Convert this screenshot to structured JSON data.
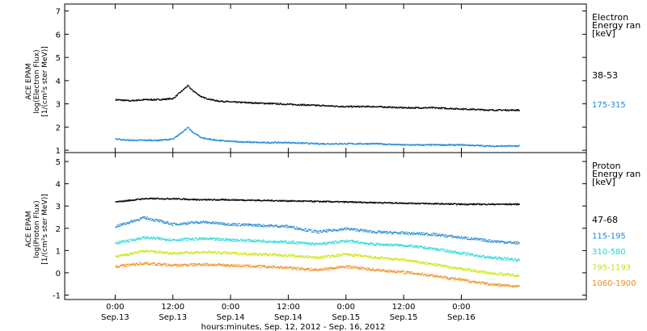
{
  "chart_data": [
    {
      "type": "scatter",
      "panel": "electron",
      "ylabel": [
        "ACE EPAM",
        "log(Electron Flux)",
        "[1/(cm²s ster MeV)]"
      ],
      "ylim": [
        0.9,
        7.3
      ],
      "yticks": [
        1,
        2,
        3,
        4,
        5,
        6,
        7
      ],
      "legend_title": [
        "Electron",
        "Energy ran",
        "[keV]"
      ],
      "series": [
        {
          "name": "38-53",
          "color": "#000000",
          "x": [
            0,
            3,
            6,
            9,
            12,
            15,
            16,
            18,
            21,
            24,
            30,
            36,
            42,
            48,
            54,
            60,
            66,
            72,
            78,
            84
          ],
          "values": [
            3.2,
            3.15,
            3.2,
            3.2,
            3.25,
            3.8,
            3.6,
            3.3,
            3.15,
            3.1,
            3.05,
            3.0,
            2.95,
            2.9,
            2.9,
            2.85,
            2.85,
            2.8,
            2.75,
            2.75
          ]
        },
        {
          "name": "175-315",
          "color": "#1e88d8",
          "x": [
            0,
            3,
            6,
            9,
            12,
            15,
            16,
            18,
            21,
            24,
            30,
            36,
            42,
            48,
            54,
            60,
            66,
            72,
            78,
            84
          ],
          "values": [
            1.5,
            1.45,
            1.45,
            1.45,
            1.5,
            2.0,
            1.8,
            1.55,
            1.45,
            1.4,
            1.35,
            1.35,
            1.3,
            1.3,
            1.3,
            1.25,
            1.25,
            1.25,
            1.2,
            1.2
          ]
        }
      ]
    },
    {
      "type": "scatter",
      "panel": "proton",
      "ylabel": [
        "ACE EPAM",
        "log(Proton Flux)",
        "[1/(cm²s ster MeV)]"
      ],
      "ylim": [
        -1.2,
        5.4
      ],
      "yticks": [
        -1,
        0,
        1,
        2,
        3,
        4,
        5
      ],
      "legend_title": [
        "Proton",
        "Energy ran",
        "[keV]"
      ],
      "series": [
        {
          "name": "47-68",
          "color": "#000000",
          "x": [
            0,
            6,
            12,
            18,
            24,
            36,
            48,
            60,
            72,
            84
          ],
          "values": [
            3.2,
            3.35,
            3.35,
            3.3,
            3.3,
            3.25,
            3.2,
            3.15,
            3.1,
            3.1
          ]
        },
        {
          "name": "115-195",
          "color": "#1e88d8",
          "x": [
            0,
            6,
            12,
            18,
            24,
            36,
            42,
            48,
            54,
            60,
            66,
            72,
            78,
            84
          ],
          "values": [
            2.1,
            2.5,
            2.2,
            2.3,
            2.2,
            2.1,
            1.85,
            2.0,
            1.85,
            1.8,
            1.75,
            1.6,
            1.45,
            1.35
          ]
        },
        {
          "name": "310-580",
          "color": "#22d6d6",
          "x": [
            0,
            6,
            12,
            18,
            24,
            36,
            42,
            48,
            54,
            60,
            66,
            72,
            78,
            84
          ],
          "values": [
            1.35,
            1.6,
            1.5,
            1.55,
            1.5,
            1.4,
            1.3,
            1.45,
            1.3,
            1.25,
            1.1,
            0.9,
            0.7,
            0.6
          ]
        },
        {
          "name": "795-1193",
          "color": "#c8e40a",
          "x": [
            0,
            6,
            12,
            18,
            24,
            36,
            42,
            48,
            54,
            60,
            66,
            72,
            78,
            84
          ],
          "values": [
            0.75,
            1.0,
            0.9,
            0.95,
            0.9,
            0.8,
            0.7,
            0.85,
            0.7,
            0.6,
            0.4,
            0.2,
            0.0,
            -0.1
          ]
        },
        {
          "name": "1060-1900",
          "color": "#f08a1c",
          "x": [
            0,
            6,
            12,
            18,
            24,
            36,
            42,
            48,
            54,
            60,
            66,
            72,
            78,
            84
          ],
          "values": [
            0.3,
            0.45,
            0.35,
            0.4,
            0.35,
            0.25,
            0.15,
            0.3,
            0.15,
            0.05,
            -0.1,
            -0.3,
            -0.5,
            -0.6
          ]
        }
      ]
    }
  ],
  "x_axis": {
    "xlim": [
      -10.5,
      98
    ],
    "ticks": [
      {
        "x": 0,
        "time": "0:00",
        "date": "Sep.13"
      },
      {
        "x": 12,
        "time": "12:00",
        "date": "Sep.13"
      },
      {
        "x": 24,
        "time": "0:00",
        "date": "Sep.14"
      },
      {
        "x": 36,
        "time": "12:00",
        "date": "Sep.14"
      },
      {
        "x": 48,
        "time": "0:00",
        "date": "Sep.15"
      },
      {
        "x": 60,
        "time": "12:00",
        "date": "Sep.15"
      },
      {
        "x": 72,
        "time": "0:00",
        "date": "Sep.16"
      }
    ],
    "label": "hours:minutes, Sep. 12, 2012 - Sep. 16, 2012"
  }
}
